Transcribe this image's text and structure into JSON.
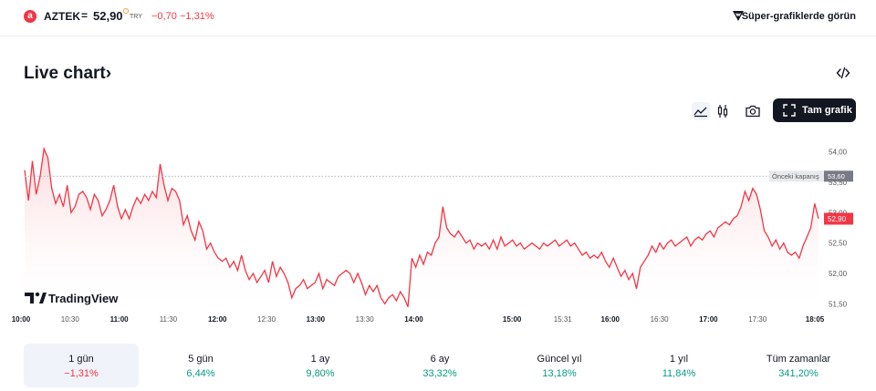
{
  "header": {
    "logo_letter": "a",
    "symbol": "AZTEK",
    "separator": "=",
    "price": "52,90",
    "currency": "TRY",
    "change": "−0,70",
    "change_percent": "−1,31%",
    "super_charts_label": "Süper-grafiklerde görün"
  },
  "section": {
    "title": "Live chart›"
  },
  "toolbar": {
    "full_chart_label": "Tam grafik"
  },
  "chart_data": {
    "type": "area",
    "y_ticks": [
      "54,00",
      "53,50",
      "53,00",
      "52,50",
      "52,00",
      "51,50"
    ],
    "ylim": [
      51.4,
      54.4
    ],
    "x_ticks": [
      "10:00",
      "10:30",
      "11:00",
      "11:30",
      "12:00",
      "12:30",
      "13:00",
      "13:30",
      "14:00",
      "15:00",
      "15:31",
      "16:00",
      "16:30",
      "17:00",
      "17:30",
      "18:05"
    ],
    "bold_x_ticks": [
      "10:00",
      "11:00",
      "12:00",
      "13:00",
      "14:00",
      "15:00",
      "16:00",
      "17:00",
      "18:05"
    ],
    "previous_close_label": "Önceki kapanış",
    "previous_close": "53,60",
    "last_price_label": "52,90",
    "watermark": "TradingView",
    "colors": {
      "line": "#f23645",
      "fill_top": "#f9b7bd",
      "fill_bottom": "#ffffff"
    },
    "values": [
      53.7,
      53.2,
      53.85,
      53.3,
      53.6,
      54.05,
      53.9,
      53.4,
      53.15,
      53.3,
      53.1,
      53.45,
      53.0,
      53.1,
      53.3,
      53.35,
      53.25,
      53.05,
      53.3,
      53.2,
      52.95,
      53.05,
      53.2,
      53.45,
      53.1,
      52.9,
      53.05,
      52.9,
      53.1,
      53.25,
      53.15,
      53.3,
      53.2,
      53.35,
      53.25,
      53.8,
      53.45,
      53.2,
      53.4,
      53.35,
      53.2,
      52.8,
      52.95,
      52.7,
      52.55,
      52.85,
      52.7,
      52.4,
      52.5,
      52.35,
      52.25,
      52.2,
      52.25,
      52.1,
      52.2,
      52.05,
      52.3,
      52.05,
      51.9,
      52.0,
      51.85,
      51.95,
      52.05,
      51.85,
      52.2,
      51.95,
      52.1,
      52.0,
      51.85,
      51.6,
      51.75,
      51.8,
      51.9,
      51.75,
      51.8,
      51.85,
      52.0,
      51.75,
      51.9,
      51.85,
      51.8,
      51.95,
      52.0,
      52.05,
      52.0,
      51.85,
      52.0,
      51.85,
      51.65,
      51.8,
      51.7,
      51.8,
      51.6,
      51.5,
      51.6,
      51.65,
      51.55,
      51.7,
      51.6,
      51.45,
      52.25,
      52.1,
      52.3,
      52.15,
      52.35,
      52.3,
      52.5,
      52.6,
      53.1,
      52.75,
      52.65,
      52.6,
      52.7,
      52.6,
      52.5,
      52.55,
      52.4,
      52.5,
      52.45,
      52.5,
      52.4,
      52.55,
      52.4,
      52.6,
      52.45,
      52.5,
      52.55,
      52.45,
      52.5,
      52.4,
      52.45,
      52.5,
      52.45,
      52.4,
      52.5,
      52.45,
      52.5,
      52.55,
      52.45,
      52.5,
      52.55,
      52.45,
      52.5,
      52.4,
      52.3,
      52.35,
      52.25,
      52.3,
      52.25,
      52.35,
      52.2,
      52.1,
      52.25,
      52.1,
      51.95,
      52.05,
      51.9,
      52.0,
      51.75,
      52.1,
      52.2,
      52.3,
      52.45,
      52.35,
      52.5,
      52.4,
      52.5,
      52.55,
      52.45,
      52.5,
      52.55,
      52.6,
      52.45,
      52.55,
      52.6,
      52.55,
      52.65,
      52.7,
      52.6,
      52.75,
      52.8,
      52.85,
      52.8,
      52.9,
      52.95,
      53.1,
      53.35,
      53.2,
      53.4,
      53.3,
      53.05,
      52.7,
      52.6,
      52.45,
      52.55,
      52.4,
      52.5,
      52.35,
      52.3,
      52.35,
      52.25,
      52.45,
      52.6,
      52.75,
      53.15,
      52.9
    ]
  },
  "periods": [
    {
      "label": "1 gün",
      "value": "−1,31%",
      "trend": "neg",
      "active": true
    },
    {
      "label": "5 gün",
      "value": "6,44%",
      "trend": "pos",
      "active": false
    },
    {
      "label": "1 ay",
      "value": "9,80%",
      "trend": "pos",
      "active": false
    },
    {
      "label": "6 ay",
      "value": "33,32%",
      "trend": "pos",
      "active": false
    },
    {
      "label": "Güncel yıl",
      "value": "13,18%",
      "trend": "pos",
      "active": false
    },
    {
      "label": "1 yıl",
      "value": "11,84%",
      "trend": "pos",
      "active": false
    },
    {
      "label": "Tüm zamanlar",
      "value": "341,20%",
      "trend": "pos",
      "active": false
    }
  ]
}
